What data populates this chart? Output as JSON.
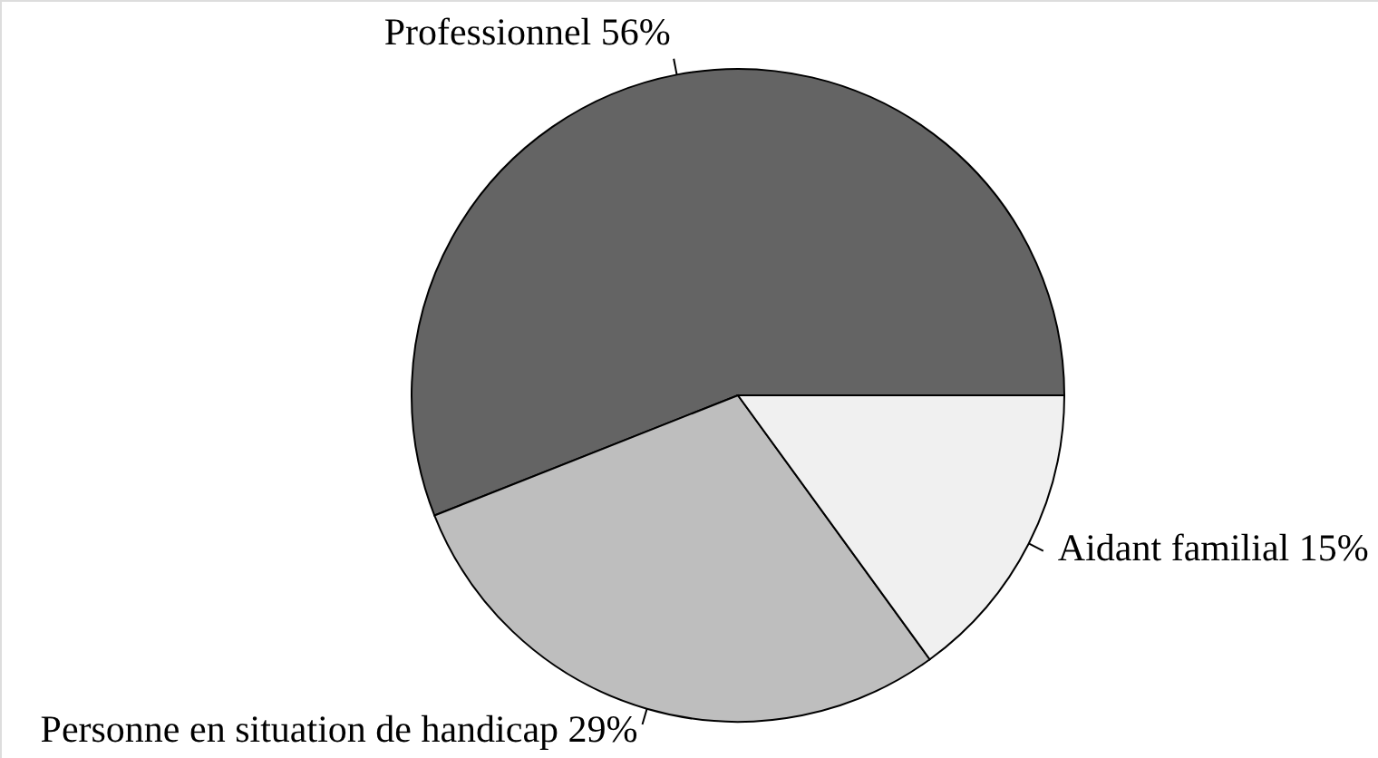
{
  "chart_data": {
    "type": "pie",
    "categories": [
      "Professionnel",
      "Personne en situation de handicap",
      "Aidant familial"
    ],
    "values": [
      56,
      29,
      15
    ],
    "colors": [
      "#646464",
      "#bebebe",
      "#f0f0f0"
    ],
    "value_labels": [
      "56%",
      "29%",
      "15%"
    ]
  }
}
